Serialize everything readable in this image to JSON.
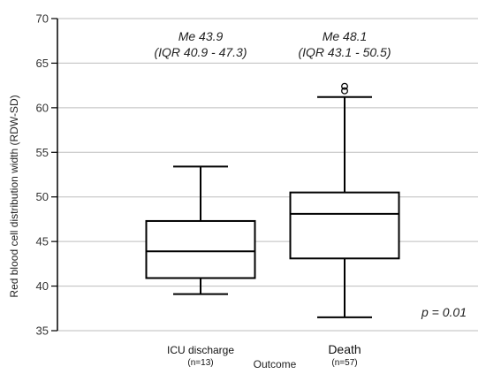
{
  "chart_data": {
    "type": "box",
    "ylabel": "Red blood cell distribution width (RDW-SD)",
    "xlabel": "Outcome",
    "ylim": [
      35,
      70
    ],
    "yticks": [
      35,
      40,
      45,
      50,
      55,
      60,
      65,
      70
    ],
    "grid": true,
    "groups": [
      {
        "label": "ICU discharge",
        "n_label": "(n=13)",
        "min": 39.1,
        "q1": 40.9,
        "median": 43.9,
        "q3": 47.3,
        "max": 53.4,
        "outliers": [],
        "median_text": "Me 43.9",
        "iqr_text": "(IQR 40.9 - 47.3)"
      },
      {
        "label": "Death",
        "n_label": "(n=57)",
        "min": 36.5,
        "q1": 43.1,
        "median": 48.1,
        "q3": 50.5,
        "max": 61.2,
        "outliers": [
          61.9,
          62.4
        ],
        "median_text": "Me 48.1",
        "iqr_text": "(IQR 43.1 - 50.5)"
      }
    ],
    "annotation": "p = 0.01"
  }
}
